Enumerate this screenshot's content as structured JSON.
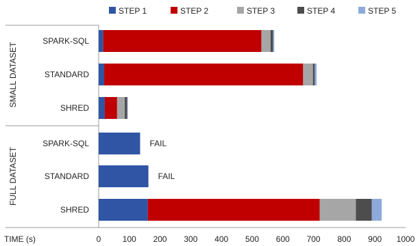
{
  "chart_data": {
    "type": "bar",
    "orientation": "horizontal",
    "stacked": true,
    "xlabel": "TIME (s)",
    "xlim": [
      0,
      1000
    ],
    "xticks": [
      0,
      100,
      200,
      300,
      400,
      500,
      600,
      700,
      800,
      900,
      1000
    ],
    "grid": false,
    "legend_position": "top",
    "colors": [
      "#2f55a4",
      "#c00000",
      "#a6a6a6",
      "#4d4d4d",
      "#8eaadb"
    ],
    "series_names": [
      "STEP 1",
      "STEP 2",
      "STEP 3",
      "STEP 4",
      "STEP 5"
    ],
    "groups": [
      {
        "label": "SMALL DATASET",
        "rows": [
          {
            "label": "SPARK-SQL",
            "values": [
              15,
              515,
              30,
              8,
              4
            ],
            "note": ""
          },
          {
            "label": "STANDARD",
            "values": [
              18,
              648,
              32,
              6,
              6
            ],
            "note": ""
          },
          {
            "label": "SHRED",
            "values": [
              20,
              40,
              25,
              8,
              2
            ],
            "note": ""
          }
        ]
      },
      {
        "label": "FULL DATASET",
        "rows": [
          {
            "label": "SPARK-SQL",
            "values": [
              135,
              0,
              0,
              0,
              0
            ],
            "note": "FAIL"
          },
          {
            "label": "STANDARD",
            "values": [
              162,
              0,
              0,
              0,
              0
            ],
            "note": "FAIL"
          },
          {
            "label": "SHRED",
            "values": [
              160,
              560,
              118,
              52,
              32
            ],
            "note": ""
          }
        ]
      }
    ]
  }
}
